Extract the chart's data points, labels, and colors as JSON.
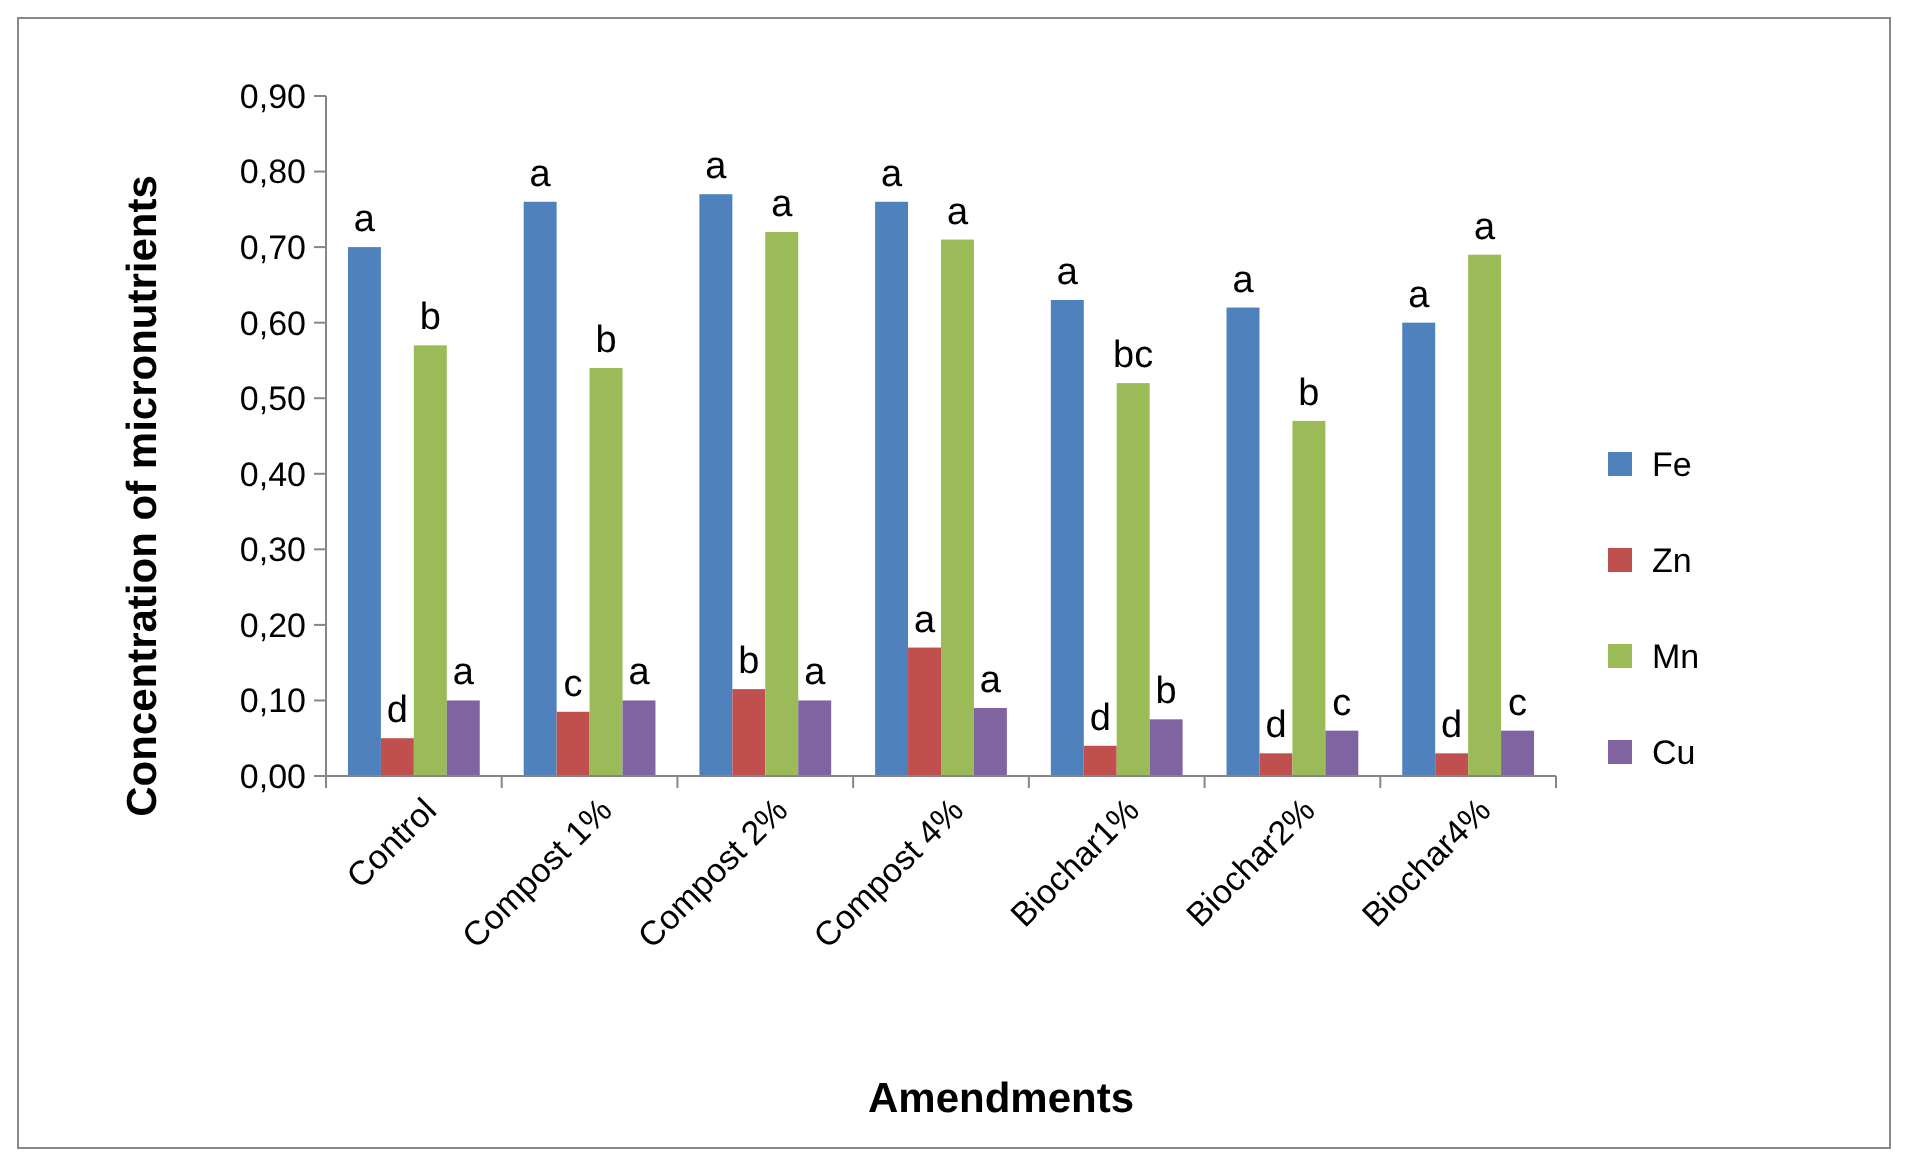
{
  "chart_data": {
    "type": "bar",
    "xlabel": "Amendments",
    "ylabel": "Concentration of micronutrients",
    "categories": [
      "Control",
      "Compost 1%",
      "Compost 2%",
      "Compost 4%",
      "Biochar1%",
      "Biochar2%",
      "Biochar4%"
    ],
    "series": [
      {
        "name": "Fe",
        "color": "#4f81bd",
        "values": [
          0.7,
          0.76,
          0.77,
          0.76,
          0.63,
          0.62,
          0.6
        ],
        "value_labels": [
          "a",
          "a",
          "a",
          "a",
          "a",
          "a",
          "a"
        ]
      },
      {
        "name": "Zn",
        "color": "#c0504d",
        "values": [
          0.05,
          0.085,
          0.115,
          0.17,
          0.04,
          0.03,
          0.03
        ],
        "value_labels": [
          "d",
          "c",
          "b",
          "a",
          "d",
          "d",
          "d"
        ]
      },
      {
        "name": "Mn",
        "color": "#9bbb59",
        "values": [
          0.57,
          0.54,
          0.72,
          0.71,
          0.52,
          0.47,
          0.69
        ],
        "value_labels": [
          "b",
          "b",
          "a",
          "a",
          "bc",
          "b",
          "a"
        ]
      },
      {
        "name": "Cu",
        "color": "#8064a2",
        "values": [
          0.1,
          0.1,
          0.1,
          0.09,
          0.075,
          0.06,
          0.06
        ],
        "value_labels": [
          "a",
          "a",
          "a",
          "a",
          "b",
          "c",
          "c"
        ]
      }
    ],
    "ylim": [
      0,
      0.9
    ],
    "yticks": [
      {
        "value": 0,
        "label": "0,00"
      },
      {
        "value": 0.1,
        "label": "0,10"
      },
      {
        "value": 0.2,
        "label": "0,20"
      },
      {
        "value": 0.3,
        "label": "0,30"
      },
      {
        "value": 0.4,
        "label": "0,40"
      },
      {
        "value": 0.5,
        "label": "0,50"
      },
      {
        "value": 0.6,
        "label": "0,60"
      },
      {
        "value": 0.7,
        "label": "0,70"
      },
      {
        "value": 0.8,
        "label": "0,80"
      },
      {
        "value": 0.9,
        "label": "0,90"
      }
    ],
    "legend": "right"
  }
}
